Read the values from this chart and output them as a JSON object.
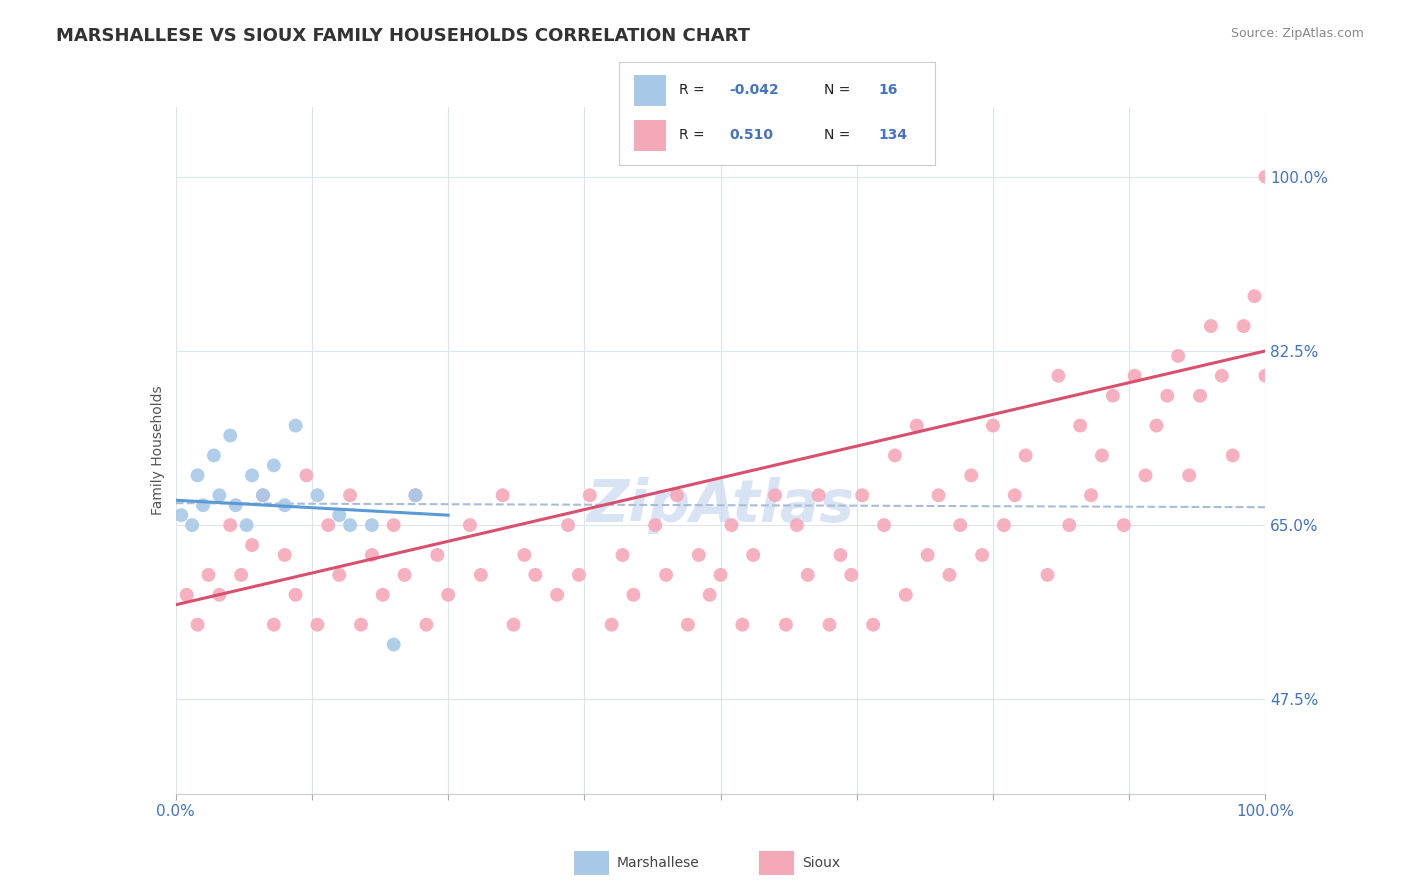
{
  "title": "MARSHALLESE VS SIOUX FAMILY HOUSEHOLDS CORRELATION CHART",
  "source_text": "Source: ZipAtlas.com",
  "ylabel": "Family Households",
  "xlim": [
    0.0,
    100.0
  ],
  "ylim": [
    38.0,
    107.0
  ],
  "yticks": [
    47.5,
    65.0,
    82.5,
    100.0
  ],
  "xticks": [
    0,
    12.5,
    25,
    37.5,
    50,
    62.5,
    75,
    87.5,
    100
  ],
  "xtick_labels_show": [
    "0.0%",
    "",
    "",
    "",
    "",
    "",
    "",
    "",
    "100.0%"
  ],
  "ytick_labels": [
    "47.5%",
    "65.0%",
    "82.5%",
    "100.0%"
  ],
  "background_color": "#ffffff",
  "grid_color": "#dde4ef",
  "title_fontsize": 13,
  "axis_label_fontsize": 10,
  "tick_fontsize": 11,
  "marshallese_color": "#a8c8e8",
  "sioux_color": "#f5a8b8",
  "marshallese_line_color": "#5b9bd5",
  "sioux_line_color": "#d94f6e",
  "dashed_line_color": "#a8bcd8",
  "watermark_color": "#c8d8f0",
  "legend_box_color": "#ffffff",
  "legend_border_color": "#cccccc",
  "blue_text_color": "#4472c4",
  "dark_text_color": "#222222",
  "source_color": "#888888",
  "ylabel_color": "#555555",
  "marshallese_x": [
    0.5,
    1.5,
    2.0,
    2.5,
    3.5,
    4.0,
    5.0,
    5.5,
    6.5,
    7.0,
    8.0,
    9.0,
    10.0,
    11.0,
    13.0,
    15.0,
    16.0,
    18.0,
    20.0,
    22.0
  ],
  "marshallese_y": [
    66,
    65,
    70,
    67,
    72,
    68,
    74,
    67,
    65,
    70,
    68,
    71,
    67,
    75,
    68,
    66,
    65,
    65,
    53,
    68
  ],
  "sioux_x": [
    1,
    2,
    3,
    4,
    5,
    6,
    7,
    8,
    9,
    10,
    11,
    12,
    13,
    14,
    15,
    16,
    17,
    18,
    19,
    20,
    21,
    22,
    23,
    24,
    25,
    27,
    28,
    30,
    31,
    32,
    33,
    35,
    36,
    37,
    38,
    40,
    41,
    42,
    44,
    45,
    46,
    47,
    48,
    49,
    50,
    51,
    52,
    53,
    55,
    56,
    57,
    58,
    59,
    60,
    61,
    62,
    63,
    64,
    65,
    66,
    67,
    68,
    69,
    70,
    71,
    72,
    73,
    74,
    75,
    76,
    77,
    78,
    80,
    81,
    82,
    83,
    84,
    85,
    86,
    87,
    88,
    89,
    90,
    91,
    92,
    93,
    94,
    95,
    96,
    97,
    98,
    99,
    100,
    100
  ],
  "sioux_y": [
    58,
    55,
    60,
    58,
    65,
    60,
    63,
    68,
    55,
    62,
    58,
    70,
    55,
    65,
    60,
    68,
    55,
    62,
    58,
    65,
    60,
    68,
    55,
    62,
    58,
    65,
    60,
    68,
    55,
    62,
    60,
    58,
    65,
    60,
    68,
    55,
    62,
    58,
    65,
    60,
    68,
    55,
    62,
    58,
    60,
    65,
    55,
    62,
    68,
    55,
    65,
    60,
    68,
    55,
    62,
    60,
    68,
    55,
    65,
    72,
    58,
    75,
    62,
    68,
    60,
    65,
    70,
    62,
    75,
    65,
    68,
    72,
    60,
    80,
    65,
    75,
    68,
    72,
    78,
    65,
    80,
    70,
    75,
    78,
    82,
    70,
    78,
    85,
    80,
    72,
    85,
    88,
    100,
    80
  ],
  "marsh_trend_x": [
    0,
    25
  ],
  "marsh_trend_y": [
    67.5,
    66.0
  ],
  "sioux_trend_x": [
    0,
    100
  ],
  "sioux_trend_y": [
    57.0,
    82.5
  ],
  "dashed_line_x": [
    0,
    100
  ],
  "dashed_line_y": [
    67.2,
    66.8
  ]
}
